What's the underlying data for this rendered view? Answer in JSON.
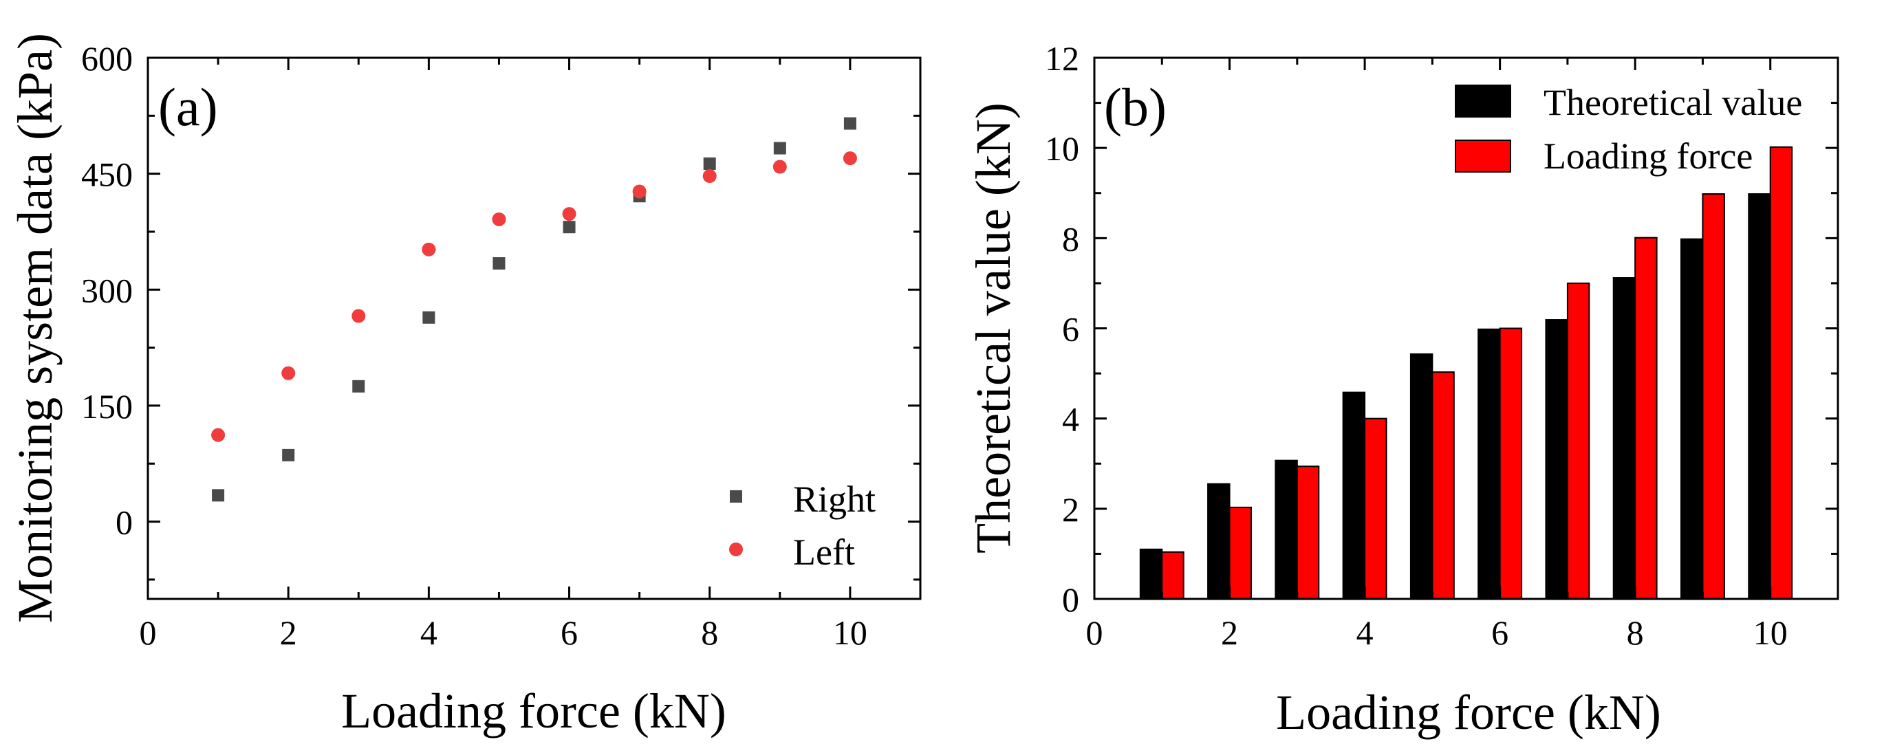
{
  "chart_data": [
    {
      "type": "scatter",
      "panel_label": "(a)",
      "xlabel": "Loading force (kN)",
      "ylabel": "Monitoring system data (kPa)",
      "xlim": [
        0,
        11
      ],
      "ylim": [
        -100,
        600
      ],
      "xticks": [
        0,
        2,
        4,
        6,
        8,
        10
      ],
      "yticks": [
        0,
        150,
        300,
        450,
        600
      ],
      "legend_position": "bottom-right",
      "series": [
        {
          "name": "Right",
          "marker": "square",
          "color": "#4a4a4a",
          "x": [
            1,
            2,
            3,
            4,
            5,
            6,
            7,
            8,
            9,
            10
          ],
          "y": [
            34,
            86,
            175,
            264,
            334,
            381,
            421,
            463,
            483,
            515
          ]
        },
        {
          "name": "Left",
          "marker": "circle",
          "color": "#f03c3c",
          "x": [
            1,
            2,
            3,
            4,
            5,
            6,
            7,
            8,
            9,
            10
          ],
          "y": [
            112,
            192,
            266,
            352,
            391,
            398,
            427,
            447,
            459,
            470
          ]
        }
      ]
    },
    {
      "type": "bar",
      "panel_label": "(b)",
      "xlabel": "Loading force (kN)",
      "ylabel": "Theoretical value (kN)",
      "xlim": [
        0,
        11
      ],
      "ylim": [
        0,
        12
      ],
      "xticks": [
        0,
        2,
        4,
        6,
        8,
        10
      ],
      "yticks": [
        0,
        2,
        4,
        6,
        8,
        10,
        12
      ],
      "legend_position": "top-right",
      "categories": [
        1,
        2,
        3,
        4,
        5,
        6,
        7,
        8,
        9,
        10
      ],
      "series": [
        {
          "name": "Theoretical value",
          "color": "#000000",
          "values": [
            1.1,
            2.55,
            3.07,
            4.58,
            5.43,
            5.98,
            6.19,
            7.12,
            7.98,
            8.98
          ]
        },
        {
          "name": "Loading force",
          "color": "#ff0000",
          "values": [
            1.04,
            2.03,
            2.94,
            4.0,
            5.03,
            6.0,
            7.0,
            8.01,
            8.98,
            10.02
          ]
        }
      ]
    }
  ]
}
